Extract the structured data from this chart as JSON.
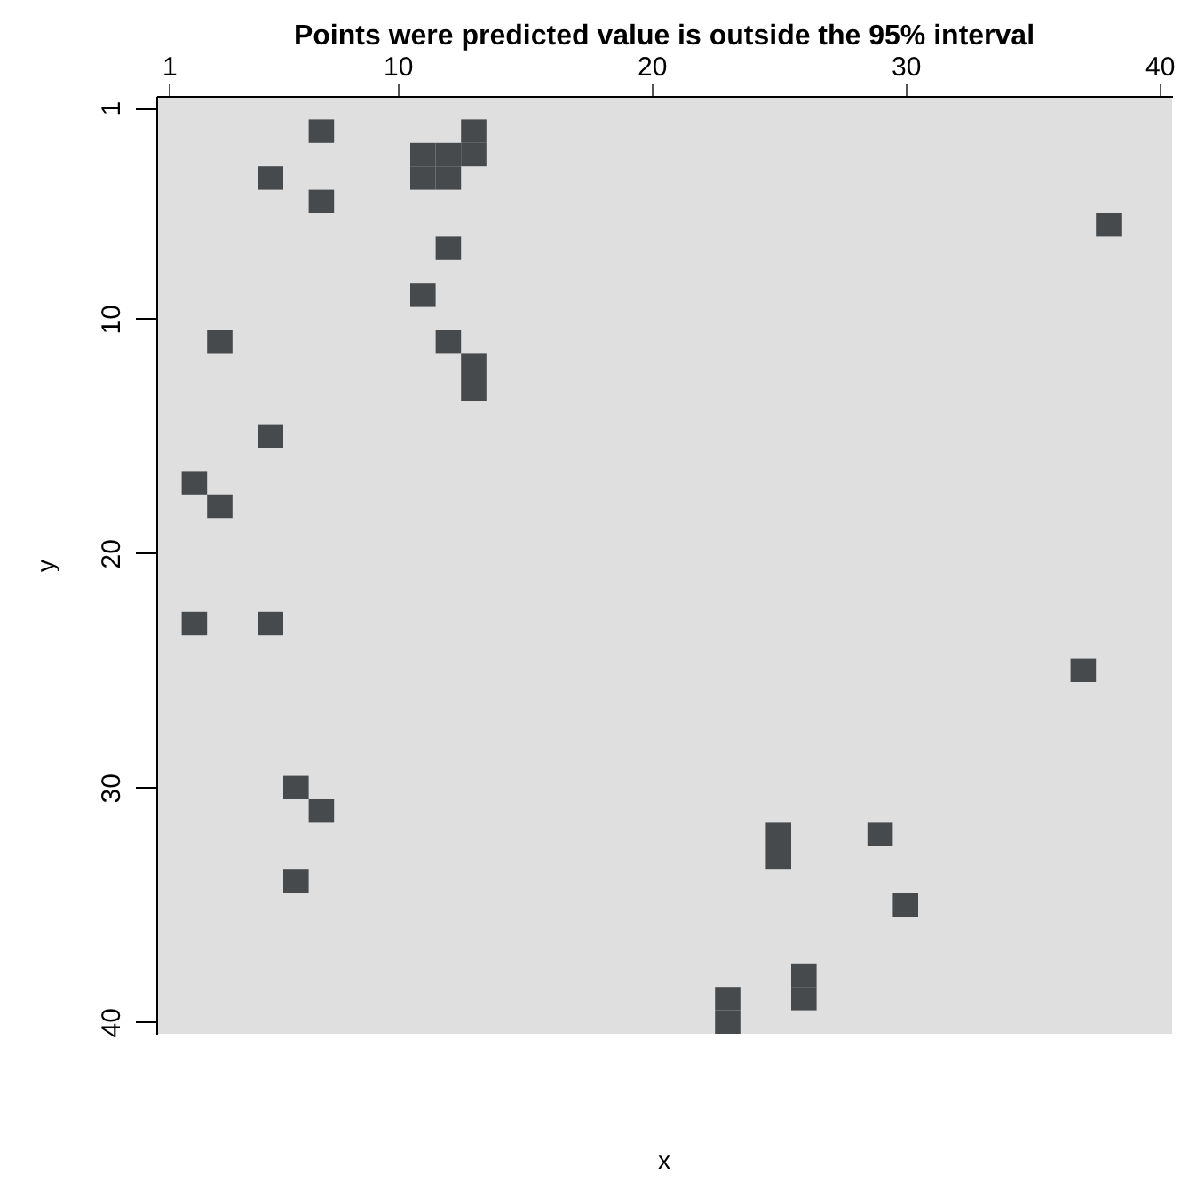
{
  "chart_data": {
    "type": "scatter",
    "title": "Points were predicted value is outside the 95% interval",
    "xlabel": "x",
    "ylabel": "y",
    "xlim": [
      0.5,
      40.5
    ],
    "ylim": [
      40.5,
      0.5
    ],
    "xticks": [
      1,
      10,
      20,
      30,
      40
    ],
    "yticks": [
      1,
      10,
      20,
      30,
      40
    ],
    "grid": false,
    "marker": "square",
    "series": [
      {
        "color": "#464a4d",
        "x": [
          7,
          11,
          12,
          11,
          12,
          13,
          13,
          5,
          7,
          12,
          11,
          3,
          12,
          13,
          13,
          5,
          2,
          3,
          38,
          2,
          5,
          6,
          7,
          6,
          37,
          25,
          25,
          29,
          30,
          26,
          26,
          23,
          23
        ],
        "values": [
          2,
          3,
          3,
          4,
          4,
          2,
          3,
          4,
          5,
          7,
          9,
          11,
          11,
          12,
          13,
          15,
          17,
          18,
          6,
          23,
          23,
          30,
          31,
          34,
          25,
          32,
          33,
          32,
          35,
          38,
          39,
          39,
          40
        ]
      }
    ]
  }
}
